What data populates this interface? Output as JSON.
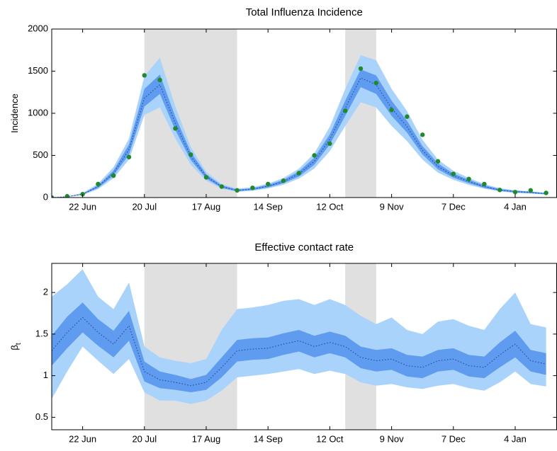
{
  "chart_data": [
    {
      "type": "line",
      "title": "Total Influenza Incidence",
      "y_label": "Incidence",
      "categories": [
        null,
        null,
        "22 Jun",
        null,
        null,
        null,
        "20 Jul",
        null,
        null,
        null,
        "17 Aug",
        null,
        null,
        null,
        "14 Sep",
        null,
        null,
        null,
        "12 Oct",
        null,
        null,
        null,
        "9 Nov",
        null,
        null,
        null,
        "7 Dec",
        null,
        null,
        null,
        "4 Jan",
        null,
        null
      ],
      "ylim": [
        0,
        2000
      ],
      "yticks": [
        0,
        500,
        1000,
        1500,
        2000
      ],
      "shaded": [
        [
          6,
          12
        ],
        [
          19,
          21
        ]
      ],
      "median": [
        0,
        10,
        40,
        130,
        290,
        570,
        1180,
        1340,
        880,
        490,
        250,
        130,
        85,
        100,
        135,
        190,
        280,
        430,
        690,
        1060,
        1420,
        1340,
        1060,
        840,
        560,
        370,
        260,
        190,
        130,
        90,
        70,
        60,
        45
      ],
      "inner_band": {
        "lower": [
          0,
          8,
          35,
          115,
          260,
          510,
          1080,
          1230,
          800,
          445,
          225,
          115,
          75,
          90,
          120,
          170,
          250,
          390,
          630,
          970,
          1310,
          1230,
          970,
          770,
          510,
          335,
          235,
          170,
          115,
          80,
          60,
          50,
          38
        ],
        "upper": [
          0,
          12,
          45,
          145,
          320,
          630,
          1290,
          1460,
          960,
          540,
          275,
          145,
          95,
          110,
          150,
          210,
          310,
          475,
          750,
          1150,
          1520,
          1450,
          1150,
          910,
          610,
          405,
          285,
          210,
          145,
          100,
          80,
          70,
          52
        ]
      },
      "outer_band": {
        "lower": [
          0,
          6,
          30,
          100,
          230,
          450,
          980,
          1070,
          700,
          390,
          200,
          105,
          68,
          80,
          108,
          152,
          225,
          345,
          550,
          850,
          1130,
          1070,
          850,
          670,
          450,
          295,
          210,
          150,
          105,
          72,
          56,
          48,
          36
        ],
        "upper": [
          0,
          15,
          52,
          165,
          360,
          700,
          1440,
          1660,
          1080,
          600,
          305,
          160,
          105,
          122,
          165,
          232,
          342,
          525,
          840,
          1290,
          1690,
          1630,
          1290,
          1025,
          685,
          450,
          318,
          232,
          160,
          110,
          86,
          74,
          56
        ]
      },
      "observed": [
        0,
        15,
        40,
        160,
        260,
        480,
        1450,
        1395,
        820,
        510,
        240,
        130,
        85,
        115,
        160,
        200,
        290,
        500,
        640,
        1030,
        1530,
        1360,
        1040,
        960,
        745,
        430,
        280,
        220,
        160,
        90,
        65,
        85,
        55
      ],
      "colors": {
        "outer": "#a9d3fb",
        "inner": "#5f9bef",
        "median": "#1f3f8f",
        "observed": "#1e8a2a",
        "shaded": "#e0e0e0"
      }
    },
    {
      "type": "line",
      "title": "Effective contact rate",
      "y_label": "β",
      "y_label_subscript": "t",
      "categories": [
        null,
        null,
        "22 Jun",
        null,
        null,
        null,
        "20 Jul",
        null,
        null,
        null,
        "17 Aug",
        null,
        null,
        null,
        "14 Sep",
        null,
        null,
        null,
        "12 Oct",
        null,
        null,
        null,
        "9 Nov",
        null,
        null,
        null,
        "7 Dec",
        null,
        null,
        null,
        "4 Jan",
        null,
        null
      ],
      "ylim": [
        0.35,
        2.35
      ],
      "yticks": [
        0.5,
        1,
        1.5,
        2
      ],
      "shaded": [
        [
          6,
          12
        ],
        [
          19,
          21
        ]
      ],
      "median": [
        1.3,
        1.52,
        1.7,
        1.52,
        1.38,
        1.6,
        1.05,
        0.95,
        0.92,
        0.88,
        0.92,
        1.1,
        1.3,
        1.32,
        1.33,
        1.38,
        1.42,
        1.35,
        1.4,
        1.35,
        1.22,
        1.18,
        1.2,
        1.12,
        1.1,
        1.18,
        1.2,
        1.12,
        1.1,
        1.25,
        1.38,
        1.18,
        1.14
      ],
      "inner_band": {
        "lower": [
          1.12,
          1.33,
          1.52,
          1.36,
          1.22,
          1.42,
          0.93,
          0.85,
          0.83,
          0.8,
          0.83,
          0.98,
          1.17,
          1.19,
          1.2,
          1.25,
          1.29,
          1.22,
          1.27,
          1.22,
          1.09,
          1.05,
          1.07,
          0.99,
          0.97,
          1.05,
          1.07,
          0.99,
          0.97,
          1.1,
          1.22,
          1.05,
          1.01
        ],
        "upper": [
          1.48,
          1.71,
          1.88,
          1.68,
          1.54,
          1.78,
          1.17,
          1.05,
          1.01,
          0.96,
          1.01,
          1.22,
          1.43,
          1.45,
          1.46,
          1.51,
          1.55,
          1.48,
          1.53,
          1.48,
          1.35,
          1.31,
          1.33,
          1.25,
          1.23,
          1.31,
          1.33,
          1.25,
          1.23,
          1.4,
          1.54,
          1.31,
          1.27
        ]
      },
      "outer_band": {
        "lower": [
          0.72,
          1.05,
          1.35,
          1.18,
          1.02,
          1.2,
          0.8,
          0.7,
          0.7,
          0.66,
          0.7,
          0.82,
          0.98,
          1.0,
          1.02,
          1.05,
          1.08,
          1.02,
          1.06,
          1.02,
          0.92,
          0.88,
          0.9,
          0.86,
          0.84,
          0.88,
          0.9,
          0.85,
          0.82,
          0.92,
          1.05,
          0.9,
          0.87
        ],
        "upper": [
          1.95,
          2.1,
          2.28,
          1.95,
          1.8,
          2.12,
          1.35,
          1.22,
          1.18,
          1.15,
          1.2,
          1.55,
          1.8,
          1.82,
          1.85,
          1.9,
          1.92,
          1.85,
          1.92,
          1.85,
          1.72,
          1.62,
          1.7,
          1.55,
          1.5,
          1.65,
          1.68,
          1.6,
          1.55,
          1.8,
          2.0,
          1.62,
          1.58
        ]
      },
      "colors": {
        "outer": "#a9d3fb",
        "inner": "#5f9bef",
        "median": "#1f3f8f",
        "shaded": "#e0e0e0"
      }
    }
  ]
}
